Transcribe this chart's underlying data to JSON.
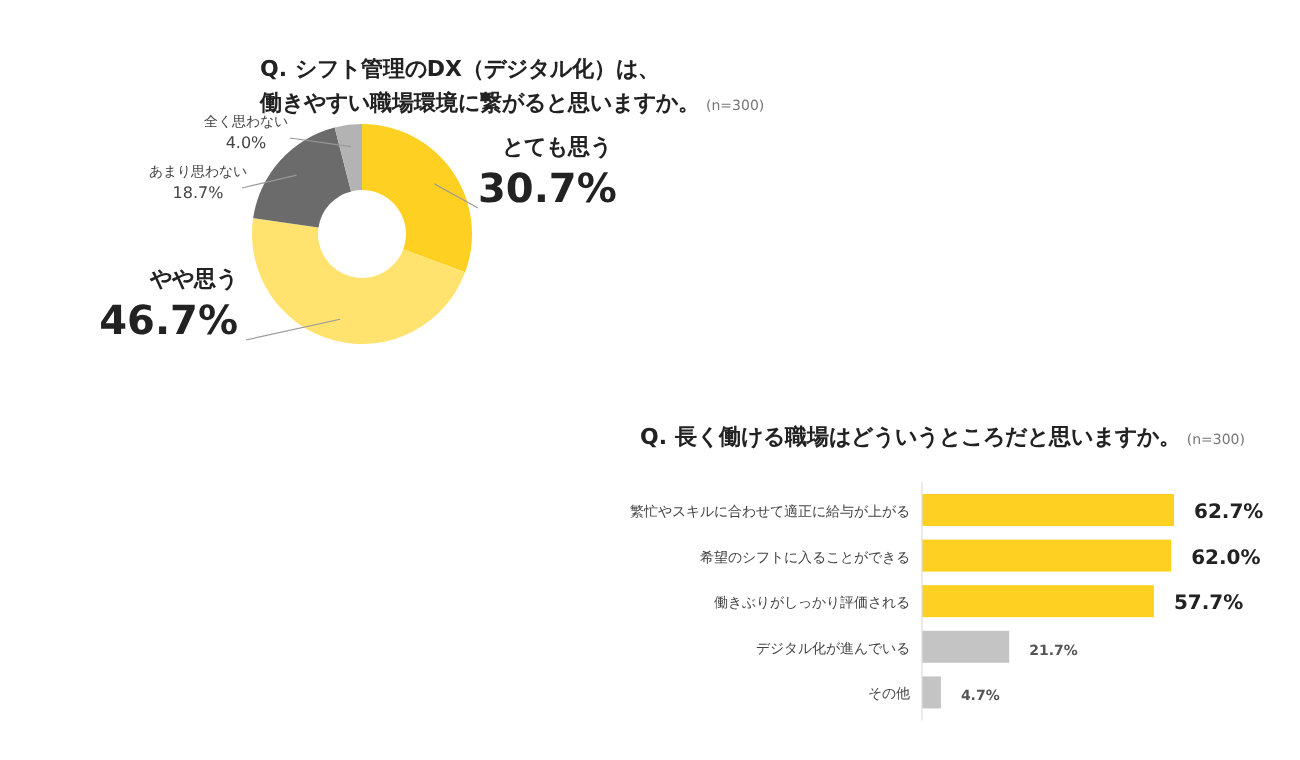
{
  "chart_data": [
    {
      "type": "donut",
      "title": "Q. シフト管理のDX（デジタル化）は、",
      "subtitle": "働きやすい職場環境に繋がると思いますか。",
      "annotations": [
        "(n=300)"
      ],
      "categories": [
        "とても思う",
        "やや思う",
        "あまり思わない",
        "全く思わない"
      ],
      "values": [
        30.7,
        46.7,
        18.7,
        4.0
      ],
      "value_labels": [
        "30.7%",
        "46.7%",
        "18.7%",
        "4.0%"
      ],
      "colors": [
        "#fdd021",
        "#ffe36e",
        "#6b6b6b",
        "#b3b3b3"
      ]
    },
    {
      "type": "bar",
      "orientation": "horizontal",
      "title": "Q. 長く働ける職場はどういうところだと思いますか。",
      "annotations": [
        "(n=300)"
      ],
      "categories": [
        "繁忙やスキルに合わせて適正に給与が上がる",
        "希望のシフトに入ることができる",
        "働きぶりがしっかり評価される",
        "デジタル化が進んでいる",
        "その他"
      ],
      "values": [
        62.7,
        62.0,
        57.7,
        21.7,
        4.7
      ],
      "value_labels": [
        "62.7%",
        "62.0%",
        "57.7%",
        "21.7%",
        "4.7%"
      ],
      "colors": [
        "#fdd021",
        "#fdd021",
        "#fdd021",
        "#c4c4c4",
        "#c4c4c4"
      ]
    }
  ]
}
